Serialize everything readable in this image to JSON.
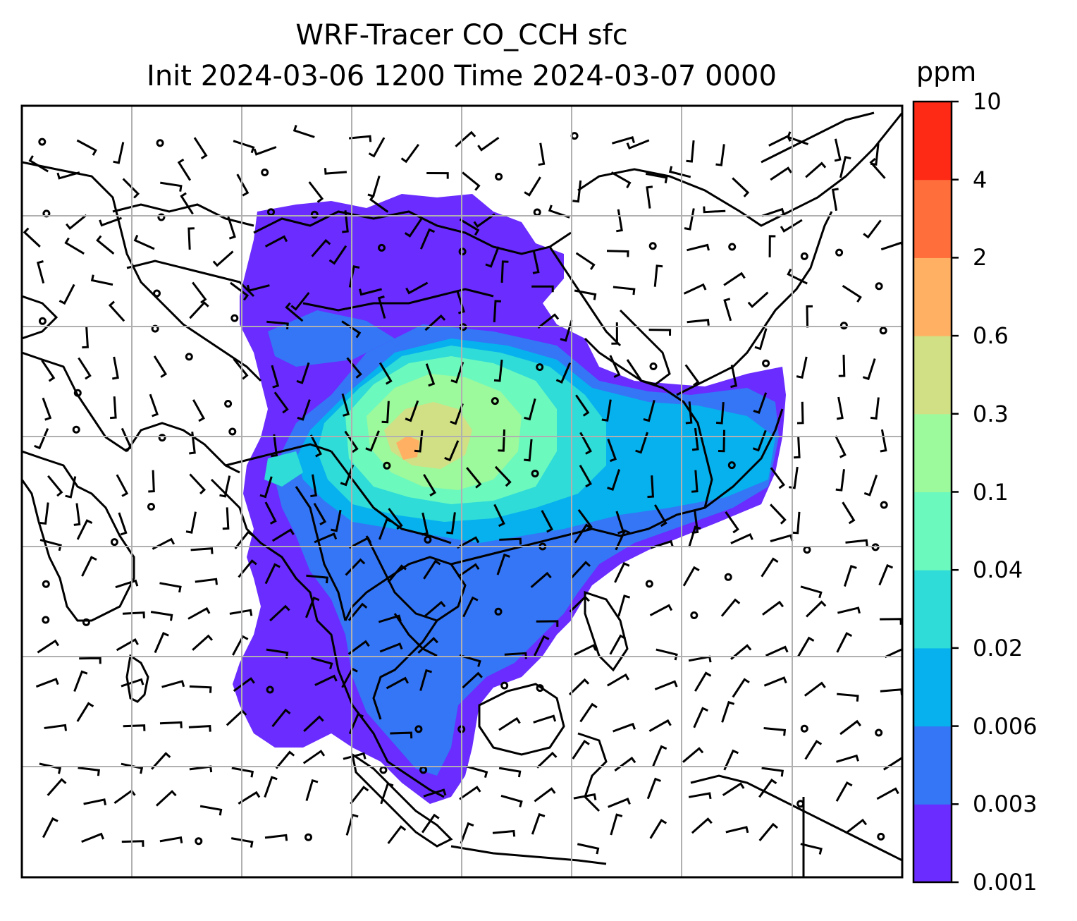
{
  "title": {
    "line1": "WRF-Tracer CO_CCH sfc",
    "line2": "Init 2024-03-06 1200 Time 2024-03-07 0000"
  },
  "colorbar": {
    "unit": "ppm",
    "levels": [
      "0.001",
      "0.003",
      "0.006",
      "0.02",
      "0.04",
      "0.1",
      "0.3",
      "0.6",
      "2",
      "4",
      "10"
    ],
    "colors": [
      "#6a2cff",
      "#3476f6",
      "#06b1ee",
      "#2fdcd7",
      "#6cf9be",
      "#9cf99c",
      "#d1e085",
      "#ffb063",
      "#ff6e3b",
      "#ff2a16"
    ]
  },
  "map": {
    "projection": "lat-lon",
    "gridlines": true,
    "field": "CO_CCH surface tracer concentration",
    "overlay": "wind barbs",
    "features": [
      "coastlines",
      "country borders"
    ]
  }
}
